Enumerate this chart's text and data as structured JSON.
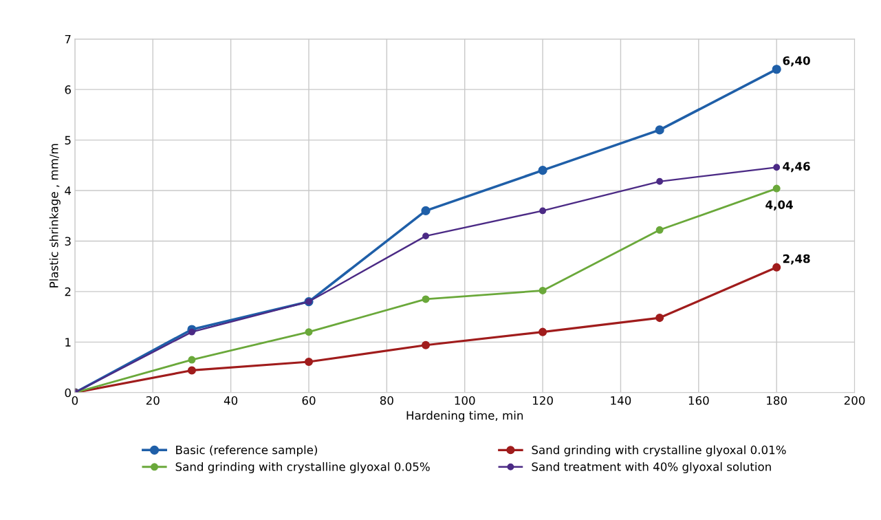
{
  "chart_data": {
    "type": "line",
    "xlabel": "Hardening time, min",
    "ylabel": "Plastic shrinkage , mm/m",
    "x": [
      0,
      30,
      60,
      90,
      120,
      150,
      180
    ],
    "series": [
      {
        "name": "Basic (reference sample)",
        "color": "#1f5fa8",
        "values": [
          0,
          1.25,
          1.8,
          3.6,
          4.4,
          5.2,
          6.4
        ],
        "value_labels": [
          null,
          null,
          null,
          null,
          null,
          null,
          "6,40"
        ]
      },
      {
        "name": "Sand grinding with crystalline glyoxal 0.01%",
        "color": "#a01c1c",
        "values": [
          0,
          0.44,
          0.61,
          0.94,
          1.2,
          1.48,
          2.48
        ],
        "value_labels": [
          null,
          null,
          null,
          null,
          null,
          null,
          "2,48"
        ]
      },
      {
        "name": "Sand grinding with crystalline glyoxal 0.05%",
        "color": "#6aa83a",
        "values": [
          0,
          0.65,
          1.2,
          1.85,
          2.02,
          3.22,
          4.04
        ],
        "value_labels": [
          null,
          null,
          null,
          null,
          null,
          null,
          "4,04"
        ]
      },
      {
        "name": "Sand treatment with 40% glyoxal solution",
        "color": "#4b2a85",
        "values": [
          0,
          1.2,
          1.8,
          3.1,
          3.6,
          4.18,
          4.46
        ],
        "value_labels": [
          null,
          null,
          null,
          null,
          null,
          null,
          "4,46"
        ]
      }
    ],
    "xlim": [
      0,
      200
    ],
    "xticks": [
      0,
      20,
      40,
      60,
      80,
      100,
      120,
      140,
      160,
      180,
      200
    ],
    "ylim": [
      0,
      7
    ],
    "yticks": [
      0,
      1,
      2,
      3,
      4,
      5,
      6,
      7
    ],
    "grid": true,
    "legend": "bottom",
    "marker": "circle",
    "line_style": "solid"
  }
}
